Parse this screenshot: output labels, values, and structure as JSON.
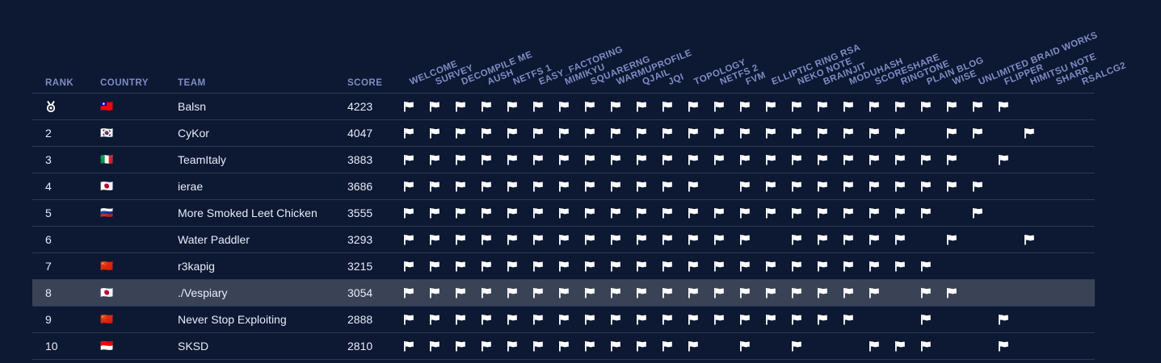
{
  "headers": {
    "rank": "RANK",
    "country": "COUNTRY",
    "team": "TEAM",
    "score": "SCORE"
  },
  "challenges": [
    "WELCOME",
    "SURVEY",
    "DECOMPILE ME",
    "AUSH",
    "NETFS 1",
    "EASY_FACTORING",
    "MIMIKYU",
    "SQUARERNG",
    "WARMUPROFILE",
    "QJAIL",
    "JQI",
    "TOPOLOGY",
    "NETFS 2",
    "FVM",
    "ELLIPTIC RING RSA",
    "NEKO NOTE",
    "BRAINJIT",
    "MODUHASH",
    "SCORESHARE",
    "RINGTONE",
    "PLAIN BLOG",
    "WISE",
    "UNLIMITED BRAID WORKS",
    "FLIPPER",
    "HIMITSU NOTE",
    "SHARR",
    "RSALCG2"
  ],
  "icons": {
    "first_place": "medal-icon",
    "solve": "flag-icon"
  },
  "colors": {
    "background": "#0d1833",
    "header_text": "#7f8cc4",
    "row_text": "#e8ecf6",
    "divider": "#2c3858",
    "highlight": "#3a4356"
  },
  "rows": [
    {
      "rank": "",
      "medal": true,
      "country": "🇹🇼",
      "team": "Balsn",
      "score": "4223",
      "solves": [
        0,
        1,
        2,
        3,
        4,
        5,
        6,
        7,
        8,
        9,
        10,
        11,
        12,
        13,
        14,
        15,
        16,
        17,
        18,
        19,
        20,
        21,
        22,
        23
      ]
    },
    {
      "rank": "2",
      "country": "🇰🇷",
      "team": "CyKor",
      "score": "4047",
      "solves": [
        0,
        1,
        2,
        3,
        4,
        5,
        6,
        7,
        8,
        9,
        10,
        11,
        12,
        13,
        14,
        15,
        16,
        17,
        18,
        19,
        21,
        22,
        24
      ]
    },
    {
      "rank": "3",
      "country": "🇮🇹",
      "team": "TeamItaly",
      "score": "3883",
      "solves": [
        0,
        1,
        2,
        3,
        4,
        5,
        6,
        7,
        8,
        9,
        10,
        11,
        12,
        13,
        14,
        15,
        16,
        17,
        18,
        19,
        20,
        21,
        23
      ]
    },
    {
      "rank": "4",
      "country": "🇯🇵",
      "team": "ierae",
      "score": "3686",
      "solves": [
        0,
        1,
        2,
        3,
        4,
        5,
        6,
        7,
        8,
        9,
        10,
        11,
        13,
        14,
        15,
        16,
        17,
        18,
        19,
        20,
        21,
        22
      ]
    },
    {
      "rank": "5",
      "country": "🇷🇺",
      "team": "More Smoked Leet Chicken",
      "score": "3555",
      "solves": [
        0,
        1,
        2,
        3,
        4,
        5,
        6,
        7,
        8,
        9,
        10,
        11,
        12,
        13,
        14,
        15,
        16,
        17,
        18,
        19,
        20,
        22
      ]
    },
    {
      "rank": "6",
      "country": "",
      "team": "Water Paddler",
      "score": "3293",
      "solves": [
        0,
        1,
        2,
        3,
        4,
        5,
        6,
        7,
        8,
        9,
        10,
        11,
        12,
        13,
        15,
        16,
        17,
        18,
        19,
        21,
        24
      ]
    },
    {
      "rank": "7",
      "country": "🇨🇳",
      "team": "r3kapig",
      "score": "3215",
      "solves": [
        0,
        1,
        2,
        3,
        4,
        5,
        6,
        7,
        8,
        9,
        10,
        11,
        12,
        13,
        14,
        15,
        16,
        17,
        18,
        19,
        20
      ]
    },
    {
      "rank": "8",
      "country": "🇯🇵",
      "team": "./Vespiary",
      "score": "3054",
      "highlight": true,
      "solves": [
        0,
        1,
        2,
        3,
        4,
        5,
        6,
        7,
        8,
        9,
        10,
        11,
        12,
        13,
        14,
        15,
        16,
        17,
        18,
        20,
        21
      ]
    },
    {
      "rank": "9",
      "country": "🇨🇳",
      "team": "Never Stop Exploiting",
      "score": "2888",
      "solves": [
        0,
        1,
        2,
        3,
        4,
        5,
        6,
        7,
        8,
        9,
        10,
        11,
        12,
        13,
        14,
        15,
        16,
        17,
        20,
        23
      ]
    },
    {
      "rank": "10",
      "country": "🇮🇩",
      "team": "SKSD",
      "score": "2810",
      "solves": [
        0,
        1,
        2,
        3,
        4,
        5,
        6,
        7,
        8,
        9,
        10,
        11,
        13,
        15,
        18,
        19,
        20,
        23
      ]
    }
  ]
}
